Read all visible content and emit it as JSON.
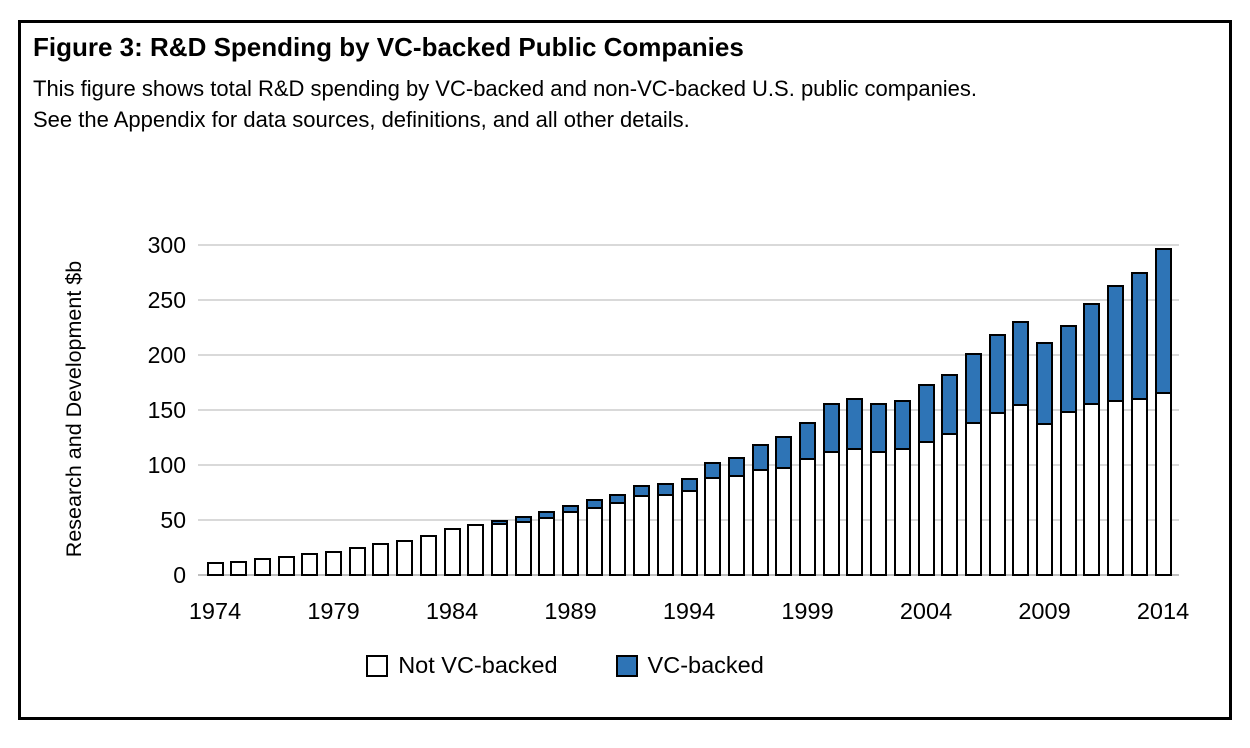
{
  "figure": {
    "title": "Figure 3: R&D Spending by VC-backed Public Companies",
    "subtitle_line1": "This figure shows total R&D spending by VC-backed and non-VC-backed U.S. public companies.",
    "subtitle_line2": "See the Appendix for data sources, definitions, and all other details."
  },
  "colors": {
    "vc_blue": "#2e74b6",
    "not_vc_white": "#ffffff",
    "bar_border": "#000000",
    "gridline": "#d9d9d9",
    "axis_line": "#bfbfbf",
    "text": "#000000"
  },
  "chart_data": {
    "type": "bar",
    "stacked": true,
    "title": "",
    "xlabel": "",
    "ylabel": "Research and Development $b",
    "ylim": [
      0,
      300
    ],
    "yticks": [
      0,
      50,
      100,
      150,
      200,
      250,
      300
    ],
    "grid": "horizontal",
    "legend_position": "bottom",
    "years": [
      1974,
      1975,
      1976,
      1977,
      1978,
      1979,
      1980,
      1981,
      1982,
      1983,
      1984,
      1985,
      1986,
      1987,
      1988,
      1989,
      1990,
      1991,
      1992,
      1993,
      1994,
      1995,
      1996,
      1997,
      1998,
      1999,
      2000,
      2001,
      2002,
      2003,
      2004,
      2005,
      2006,
      2007,
      2008,
      2009,
      2010,
      2011,
      2012,
      2013,
      2014
    ],
    "xtick_labels": [
      "1974",
      "1979",
      "1984",
      "1989",
      "1994",
      "1999",
      "2004",
      "2009",
      "2014"
    ],
    "series": [
      {
        "name": "Not VC-backed",
        "color": "#ffffff",
        "values": [
          13,
          13.5,
          16,
          18,
          21,
          23,
          26.5,
          30,
          33,
          37,
          44,
          47,
          48,
          50,
          54,
          59,
          63,
          67,
          74,
          75,
          78,
          90,
          92,
          97,
          99,
          107,
          114,
          116,
          114,
          116,
          123,
          130,
          140,
          149,
          156,
          139,
          150,
          157,
          160,
          162,
          167
        ]
      },
      {
        "name": "VC-backed",
        "color": "#2e74b6",
        "values": [
          0,
          0,
          0,
          0,
          0,
          0,
          0,
          0,
          0,
          0,
          0,
          0,
          3,
          5,
          5,
          6,
          7,
          8,
          9,
          10,
          11,
          14,
          16,
          23,
          28,
          33,
          43,
          46,
          43,
          44,
          52,
          54,
          63,
          71,
          76,
          74,
          78,
          91,
          105,
          114,
          131
        ]
      }
    ]
  }
}
